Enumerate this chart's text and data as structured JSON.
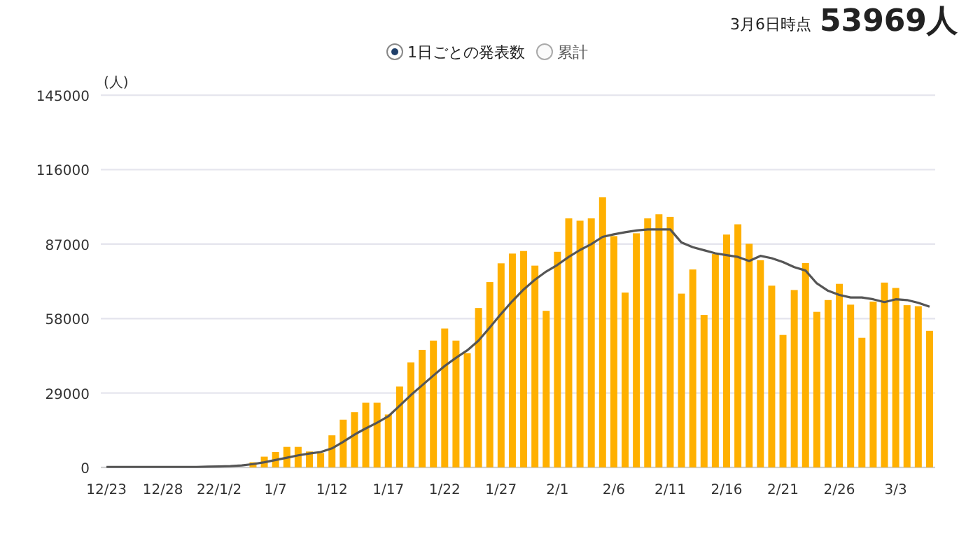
{
  "chart_data": {
    "type": "bar",
    "ylabel": "(人)",
    "annotations": [
      "3月6日時点",
      "53969人",
      "1日ごとの発表数",
      "累計"
    ],
    "categories": [
      "12/23",
      null,
      null,
      null,
      null,
      "12/28",
      null,
      null,
      null,
      null,
      "22/1/2",
      null,
      null,
      null,
      null,
      "1/7",
      null,
      null,
      null,
      null,
      "1/12",
      null,
      null,
      null,
      null,
      "1/17",
      null,
      null,
      null,
      null,
      "1/22",
      null,
      null,
      null,
      null,
      "1/27",
      null,
      null,
      null,
      null,
      "2/1",
      null,
      null,
      null,
      null,
      "2/6",
      null,
      null,
      null,
      null,
      "2/11",
      null,
      null,
      null,
      null,
      "2/16",
      null,
      null,
      null,
      null,
      "2/21",
      null,
      null,
      null,
      null,
      "2/26",
      null,
      null,
      null,
      null,
      "3/3",
      null,
      null,
      null
    ],
    "series": [
      {
        "color": "#ffb000",
        "values": [
          0,
          0,
          0,
          0,
          0,
          0,
          0,
          0,
          0,
          0,
          0,
          0,
          null,
          2000,
          4200,
          6000,
          8000,
          8000,
          6200,
          5600,
          12500,
          18600,
          21500,
          25200,
          25200,
          20600,
          31500,
          40900,
          45800,
          49400,
          54100,
          49400,
          44500,
          62100,
          72200,
          79500,
          83300,
          84300,
          78600,
          61000,
          84000,
          97000,
          96100,
          97000,
          105200,
          90100,
          68100,
          91200,
          97000,
          98600,
          97600,
          67700,
          77100,
          59400,
          83100,
          90700,
          94700,
          87100,
          80700,
          70800,
          51600,
          69100,
          79600,
          60600,
          65200,
          71500,
          63400,
          50500,
          64600,
          72000,
          69900,
          63200,
          62800,
          53200
        ]
      },
      {
        "type": "line",
        "color": "#555555",
        "values": [
          200,
          200,
          200,
          200,
          200,
          200,
          200,
          200,
          200,
          300,
          400,
          500,
          800,
          1300,
          2000,
          2900,
          3800,
          4700,
          5400,
          6000,
          7400,
          10000,
          12800,
          15200,
          17400,
          19900,
          24000,
          28200,
          32000,
          35800,
          39500,
          42700,
          45600,
          49400,
          54500,
          59800,
          64800,
          69300,
          73100,
          76300,
          78900,
          82000,
          84700,
          87000,
          89800,
          90800,
          91600,
          92300,
          92700,
          92700,
          92700,
          87600,
          85800,
          84600,
          83400,
          82700,
          82000,
          80400,
          82400,
          81500,
          80000,
          78000,
          76700,
          71700,
          68800,
          67200,
          66200,
          66200,
          65500,
          64400,
          65500,
          65200,
          64100,
          62600
        ]
      }
    ],
    "ylim": [
      0,
      145000
    ],
    "yticks": [
      0,
      29000,
      58000,
      87000,
      116000,
      145000
    ],
    "grid": "y"
  }
}
